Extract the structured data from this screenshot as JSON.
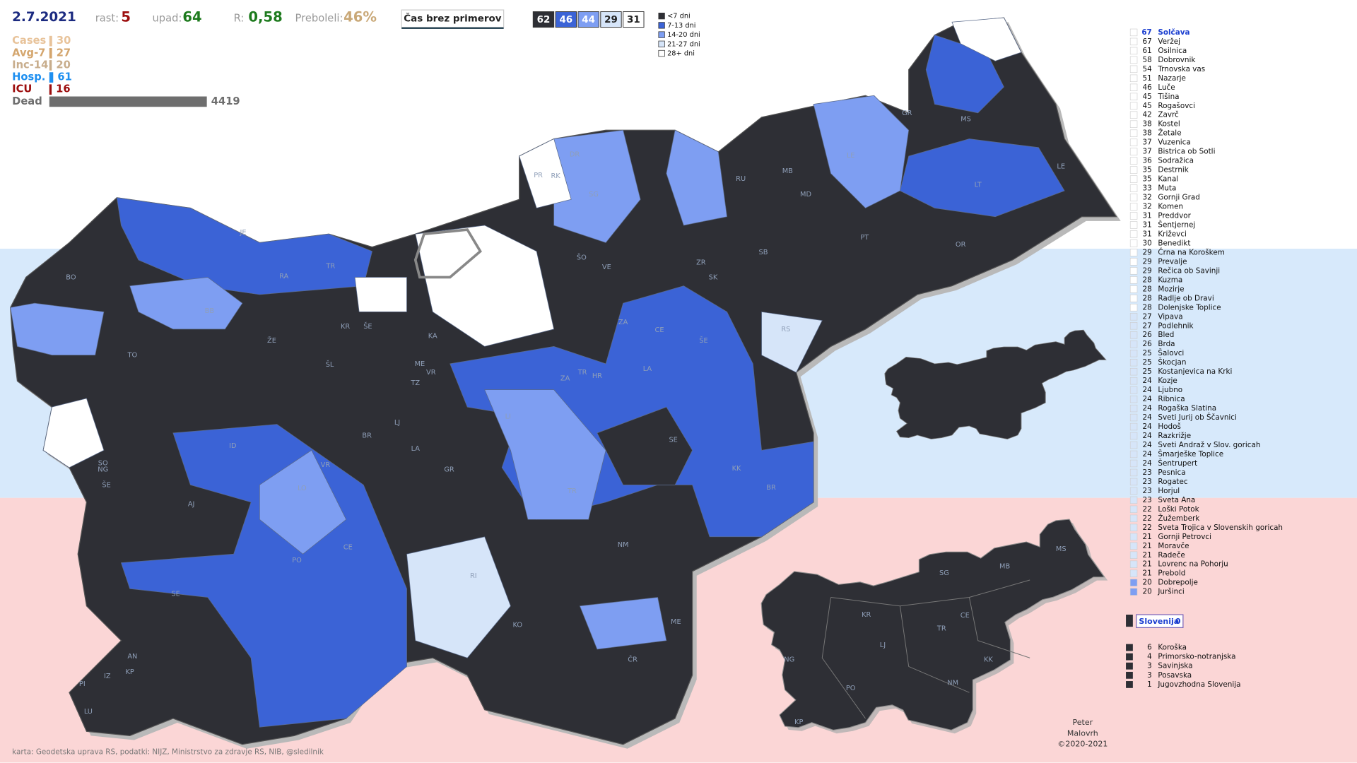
{
  "header": {
    "date": "2.7.2021",
    "growth_label": "rast:",
    "growth": 5,
    "decline_label": "upad:",
    "decline": 64,
    "r_label": "R:",
    "r": "0,58",
    "recovered_label": "Preboleli:",
    "recovered": "46%",
    "button": "Čas brez primerov"
  },
  "legend": [
    {
      "label": "<7 dni",
      "color": "#2e2f35",
      "count": 62
    },
    {
      "label": "7-13 dni",
      "color": "#3b63d6",
      "count": 46
    },
    {
      "label": "14-20 dni",
      "color": "#7e9ef2",
      "count": 44
    },
    {
      "label": "21-27 dni",
      "color": "#d6e5f9",
      "count": 29
    },
    {
      "label": "28+ dni",
      "color": "#ffffff",
      "count": 31
    }
  ],
  "stats": [
    {
      "label": "Cases",
      "value": 30,
      "color": "#e8c39a"
    },
    {
      "label": "Avg-7",
      "value": 27,
      "color": "#d4a66e"
    },
    {
      "label": "Inc-14",
      "value": 20,
      "color": "#c8ad8c"
    },
    {
      "label": "Hosp.",
      "value": 61,
      "color": "#1e8ff0"
    },
    {
      "label": "ICU",
      "value": 16,
      "color": "#9c0d0d"
    },
    {
      "label": "Dead",
      "value": 4419,
      "color": "#6e6e6e"
    }
  ],
  "ranking": [
    {
      "days": 67,
      "name": "Solčava",
      "level": 4
    },
    {
      "days": 67,
      "name": "Veržej",
      "level": 4
    },
    {
      "days": 61,
      "name": "Osilnica",
      "level": 4
    },
    {
      "days": 58,
      "name": "Dobrovnik",
      "level": 4
    },
    {
      "days": 54,
      "name": "Trnovska vas",
      "level": 4
    },
    {
      "days": 51,
      "name": "Nazarje",
      "level": 4
    },
    {
      "days": 46,
      "name": "Luče",
      "level": 4
    },
    {
      "days": 45,
      "name": "Tišina",
      "level": 4
    },
    {
      "days": 45,
      "name": "Rogašovci",
      "level": 4
    },
    {
      "days": 42,
      "name": "Zavrč",
      "level": 4
    },
    {
      "days": 38,
      "name": "Kostel",
      "level": 4
    },
    {
      "days": 38,
      "name": "Žetale",
      "level": 4
    },
    {
      "days": 37,
      "name": "Vuzenica",
      "level": 4
    },
    {
      "days": 37,
      "name": "Bistrica ob Sotli",
      "level": 4
    },
    {
      "days": 36,
      "name": "Sodražica",
      "level": 4
    },
    {
      "days": 35,
      "name": "Destrnik",
      "level": 4
    },
    {
      "days": 35,
      "name": "Kanal",
      "level": 4
    },
    {
      "days": 33,
      "name": "Muta",
      "level": 4
    },
    {
      "days": 32,
      "name": "Gornji Grad",
      "level": 4
    },
    {
      "days": 32,
      "name": "Komen",
      "level": 4
    },
    {
      "days": 31,
      "name": "Preddvor",
      "level": 4
    },
    {
      "days": 31,
      "name": "Šentjernej",
      "level": 4
    },
    {
      "days": 31,
      "name": "Križevci",
      "level": 4
    },
    {
      "days": 30,
      "name": "Benedikt",
      "level": 4
    },
    {
      "days": 29,
      "name": "Črna na Koroškem",
      "level": 4
    },
    {
      "days": 29,
      "name": "Prevalje",
      "level": 4
    },
    {
      "days": 29,
      "name": "Rečica ob Savinji",
      "level": 4
    },
    {
      "days": 28,
      "name": "Kuzma",
      "level": 4
    },
    {
      "days": 28,
      "name": "Mozirje",
      "level": 4
    },
    {
      "days": 28,
      "name": "Radlje ob Dravi",
      "level": 4
    },
    {
      "days": 28,
      "name": "Dolenjske Toplice",
      "level": 4
    },
    {
      "days": 27,
      "name": "Vipava",
      "level": 3
    },
    {
      "days": 27,
      "name": "Podlehnik",
      "level": 3
    },
    {
      "days": 26,
      "name": "Bled",
      "level": 3
    },
    {
      "days": 26,
      "name": "Brda",
      "level": 3
    },
    {
      "days": 25,
      "name": "Šalovci",
      "level": 3
    },
    {
      "days": 25,
      "name": "Škocjan",
      "level": 3
    },
    {
      "days": 25,
      "name": "Kostanjevica na Krki",
      "level": 3
    },
    {
      "days": 24,
      "name": "Kozje",
      "level": 3
    },
    {
      "days": 24,
      "name": "Ljubno",
      "level": 3
    },
    {
      "days": 24,
      "name": "Ribnica",
      "level": 3
    },
    {
      "days": 24,
      "name": "Rogaška Slatina",
      "level": 3
    },
    {
      "days": 24,
      "name": "Sveti Jurij ob Ščavnici",
      "level": 3
    },
    {
      "days": 24,
      "name": "Hodoš",
      "level": 3
    },
    {
      "days": 24,
      "name": "Razkrižje",
      "level": 3
    },
    {
      "days": 24,
      "name": "Sveti Andraž v Slov. goricah",
      "level": 3
    },
    {
      "days": 24,
      "name": "Šmarješke Toplice",
      "level": 3
    },
    {
      "days": 24,
      "name": "Šentrupert",
      "level": 3
    },
    {
      "days": 23,
      "name": "Pesnica",
      "level": 3
    },
    {
      "days": 23,
      "name": "Rogatec",
      "level": 3
    },
    {
      "days": 23,
      "name": "Horjul",
      "level": 3
    },
    {
      "days": 23,
      "name": "Sveta Ana",
      "level": 3
    },
    {
      "days": 22,
      "name": "Loški Potok",
      "level": 3
    },
    {
      "days": 22,
      "name": "Žužemberk",
      "level": 3
    },
    {
      "days": 22,
      "name": "Sveta Trojica v Slovenskih goricah",
      "level": 3
    },
    {
      "days": 21,
      "name": "Gornji Petrovci",
      "level": 3
    },
    {
      "days": 21,
      "name": "Moravče",
      "level": 3
    },
    {
      "days": 21,
      "name": "Radeče",
      "level": 3
    },
    {
      "days": 21,
      "name": "Lovrenc na Pohorju",
      "level": 3
    },
    {
      "days": 21,
      "name": "Prebold",
      "level": 3
    },
    {
      "days": 20,
      "name": "Dobrepolje",
      "level": 2
    },
    {
      "days": 20,
      "name": "Juršinci",
      "level": 2
    }
  ],
  "country": {
    "name": "Slovenija",
    "value": 0
  },
  "regions": [
    {
      "value": 6,
      "name": "Koroška"
    },
    {
      "value": 4,
      "name": "Primorsko-notranjska"
    },
    {
      "value": 3,
      "name": "Savinjska"
    },
    {
      "value": 3,
      "name": "Posavska"
    },
    {
      "value": 1,
      "name": "Jugovzhodna Slovenija"
    }
  ],
  "map_labels": [
    "BO",
    "TO",
    "KR",
    "ŠE",
    "ŽE",
    "ŠL",
    "KA",
    "ME",
    "VR",
    "TZ",
    "LJ",
    "BR",
    "LA",
    "GR",
    "ID",
    "VR",
    "LO",
    "PO",
    "CE",
    "SE",
    "AJ",
    "SO",
    "NG",
    "ŠE",
    "AN",
    "PI",
    "IZ",
    "KP",
    "LU",
    "KO",
    "RI",
    "NM",
    "ČR",
    "ME",
    "TR",
    "LI",
    "ZA",
    "ZA",
    "TR",
    "HR",
    "LA",
    "CE",
    "ŠE",
    "SE",
    "KK",
    "BR",
    "RS",
    "SB",
    "ZR",
    "SK",
    "VE",
    "ŠO",
    "SG",
    "DR",
    "RK",
    "PR",
    "MB",
    "RU",
    "MD",
    "PT",
    "OR",
    "LE",
    "GR",
    "MS",
    "LT",
    "LE",
    "JE",
    "TR",
    "RA",
    "BB"
  ],
  "region_map_labels": [
    "KR",
    "SG",
    "MB",
    "MS",
    "CE",
    "TR",
    "LJ",
    "NG",
    "PO",
    "NM",
    "KK",
    "KP"
  ],
  "credit": [
    "Peter",
    "Malovrh",
    "©2020-2021"
  ],
  "source": "karta: Geodetska uprava RS,  podatki: NIJZ, Ministrstvo za zdravje RS, NIB, @sledilnik"
}
